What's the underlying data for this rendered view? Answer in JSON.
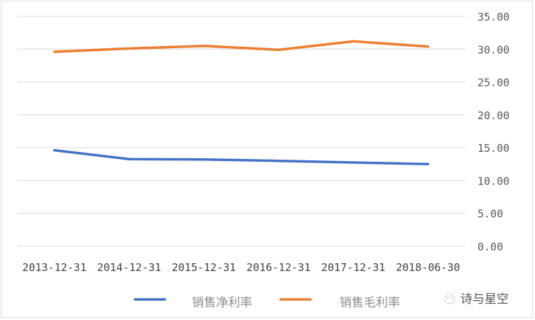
{
  "chart_data": {
    "type": "line",
    "title": "",
    "xlabel": "",
    "ylabel": "",
    "categories": [
      "2013-12-31",
      "2014-12-31",
      "2015-12-31",
      "2016-12-31",
      "2017-12-31",
      "2018-06-30"
    ],
    "series": [
      {
        "name": "销售净利率",
        "color": "#4472C4",
        "values": [
          14.6,
          13.25,
          13.2,
          13.0,
          12.75,
          12.5
        ]
      },
      {
        "name": "销售毛利率",
        "color": "#ED7D31",
        "values": [
          29.6,
          30.1,
          30.5,
          29.9,
          31.2,
          30.4
        ]
      }
    ],
    "ylim": [
      0,
      35
    ],
    "yticks": [
      "0.00",
      "5.00",
      "10.00",
      "15.00",
      "20.00",
      "25.00",
      "30.00",
      "35.00"
    ],
    "y_axis_position": "right",
    "grid": true,
    "legend_position": "bottom"
  },
  "watermark": {
    "text": "诗与星空",
    "icon": "wechat-icon"
  }
}
